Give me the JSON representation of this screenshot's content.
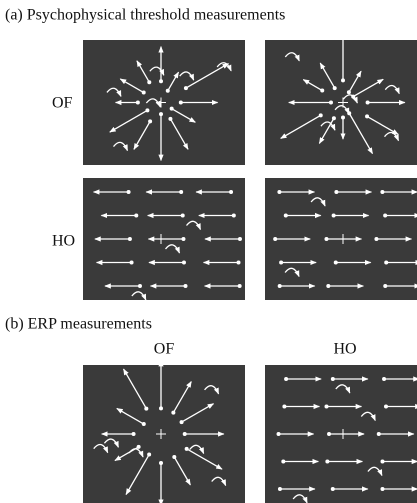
{
  "section_a": {
    "title": "(a) Psychophysical threshold measurements",
    "row_labels": [
      "OF",
      "HO"
    ]
  },
  "section_b": {
    "title": "(b) ERP measurements",
    "column_labels": [
      "OF",
      "HO"
    ]
  }
}
